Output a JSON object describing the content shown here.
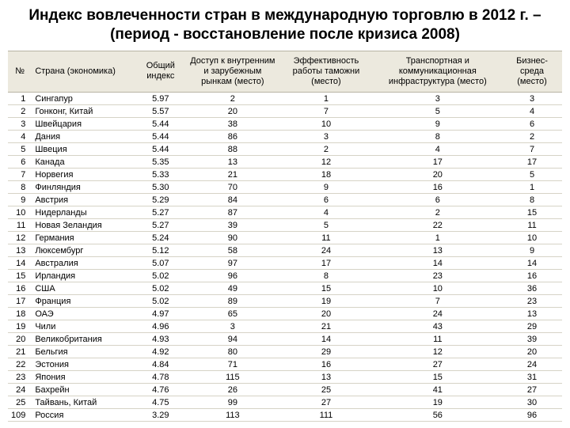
{
  "title": "Индекс вовлеченности стран в международную торговлю в 2012 г. – (период - восстановление после кризиса 2008)",
  "table": {
    "type": "table",
    "header_bg": "#ece9de",
    "border_color": "#d6d3c6",
    "columns": [
      {
        "key": "rank",
        "label": "№",
        "align": "right"
      },
      {
        "key": "country",
        "label": "Страна (экономика)",
        "align": "left"
      },
      {
        "key": "index",
        "label": "Общий индекс",
        "align": "center"
      },
      {
        "key": "access",
        "label": "Доступ к внутренним и зарубежным рынкам (место)",
        "align": "center"
      },
      {
        "key": "customs",
        "label": "Эффективность работы таможни (место)",
        "align": "center"
      },
      {
        "key": "infra",
        "label": "Транспортная и коммуникационная инфраструктура (место)",
        "align": "center"
      },
      {
        "key": "biz",
        "label": "Бизнес-среда (место)",
        "align": "center"
      }
    ],
    "rows": [
      {
        "rank": "1",
        "country": "Сингапур",
        "index": "5.97",
        "access": "2",
        "customs": "1",
        "infra": "3",
        "biz": "3"
      },
      {
        "rank": "2",
        "country": "Гонконг, Китай",
        "index": "5.57",
        "access": "20",
        "customs": "7",
        "infra": "5",
        "biz": "4"
      },
      {
        "rank": "3",
        "country": "Швейцария",
        "index": "5.44",
        "access": "38",
        "customs": "10",
        "infra": "9",
        "biz": "6"
      },
      {
        "rank": "4",
        "country": "Дания",
        "index": "5.44",
        "access": "86",
        "customs": "3",
        "infra": "8",
        "biz": "2"
      },
      {
        "rank": "5",
        "country": "Швеция",
        "index": "5.44",
        "access": "88",
        "customs": "2",
        "infra": "4",
        "biz": "7"
      },
      {
        "rank": "6",
        "country": "Канада",
        "index": "5.35",
        "access": "13",
        "customs": "12",
        "infra": "17",
        "biz": "17"
      },
      {
        "rank": "7",
        "country": "Норвегия",
        "index": "5.33",
        "access": "21",
        "customs": "18",
        "infra": "20",
        "biz": "5"
      },
      {
        "rank": "8",
        "country": "Финляндия",
        "index": "5.30",
        "access": "70",
        "customs": "9",
        "infra": "16",
        "biz": "1"
      },
      {
        "rank": "9",
        "country": "Австрия",
        "index": "5.29",
        "access": "84",
        "customs": "6",
        "infra": "6",
        "biz": "8"
      },
      {
        "rank": "10",
        "country": "Нидерланды",
        "index": "5.27",
        "access": "87",
        "customs": "4",
        "infra": "2",
        "biz": "15"
      },
      {
        "rank": "11",
        "country": "Новая Зеландия",
        "index": "5.27",
        "access": "39",
        "customs": "5",
        "infra": "22",
        "biz": "11"
      },
      {
        "rank": "12",
        "country": "Германия",
        "index": "5.24",
        "access": "90",
        "customs": "11",
        "infra": "1",
        "biz": "10"
      },
      {
        "rank": "13",
        "country": "Люксембург",
        "index": "5.12",
        "access": "58",
        "customs": "24",
        "infra": "13",
        "biz": "9"
      },
      {
        "rank": "14",
        "country": "Австралия",
        "index": "5.07",
        "access": "97",
        "customs": "17",
        "infra": "14",
        "biz": "14"
      },
      {
        "rank": "15",
        "country": "Ирландия",
        "index": "5.02",
        "access": "96",
        "customs": "8",
        "infra": "23",
        "biz": "16"
      },
      {
        "rank": "16",
        "country": "США",
        "index": "5.02",
        "access": "49",
        "customs": "15",
        "infra": "10",
        "biz": "36"
      },
      {
        "rank": "17",
        "country": "Франция",
        "index": "5.02",
        "access": "89",
        "customs": "19",
        "infra": "7",
        "biz": "23"
      },
      {
        "rank": "18",
        "country": "ОАЭ",
        "index": "4.97",
        "access": "65",
        "customs": "20",
        "infra": "24",
        "biz": "13"
      },
      {
        "rank": "19",
        "country": "Чили",
        "index": "4.96",
        "access": "3",
        "customs": "21",
        "infra": "43",
        "biz": "29"
      },
      {
        "rank": "20",
        "country": "Великобритания",
        "index": "4.93",
        "access": "94",
        "customs": "14",
        "infra": "11",
        "biz": "39"
      },
      {
        "rank": "21",
        "country": "Бельгия",
        "index": "4.92",
        "access": "80",
        "customs": "29",
        "infra": "12",
        "biz": "20"
      },
      {
        "rank": "22",
        "country": "Эстония",
        "index": "4.84",
        "access": "71",
        "customs": "16",
        "infra": "27",
        "biz": "24"
      },
      {
        "rank": "23",
        "country": "Япония",
        "index": "4.78",
        "access": "115",
        "customs": "13",
        "infra": "15",
        "biz": "31"
      },
      {
        "rank": "24",
        "country": "Бахрейн",
        "index": "4.76",
        "access": "26",
        "customs": "25",
        "infra": "41",
        "biz": "27"
      },
      {
        "rank": "25",
        "country": "Тайвань, Китай",
        "index": "4.75",
        "access": "99",
        "customs": "27",
        "infra": "19",
        "biz": "30"
      },
      {
        "rank": "109",
        "country": "Россия",
        "index": "3.29",
        "access": "113",
        "customs": "111",
        "infra": "56",
        "biz": "96"
      }
    ]
  }
}
